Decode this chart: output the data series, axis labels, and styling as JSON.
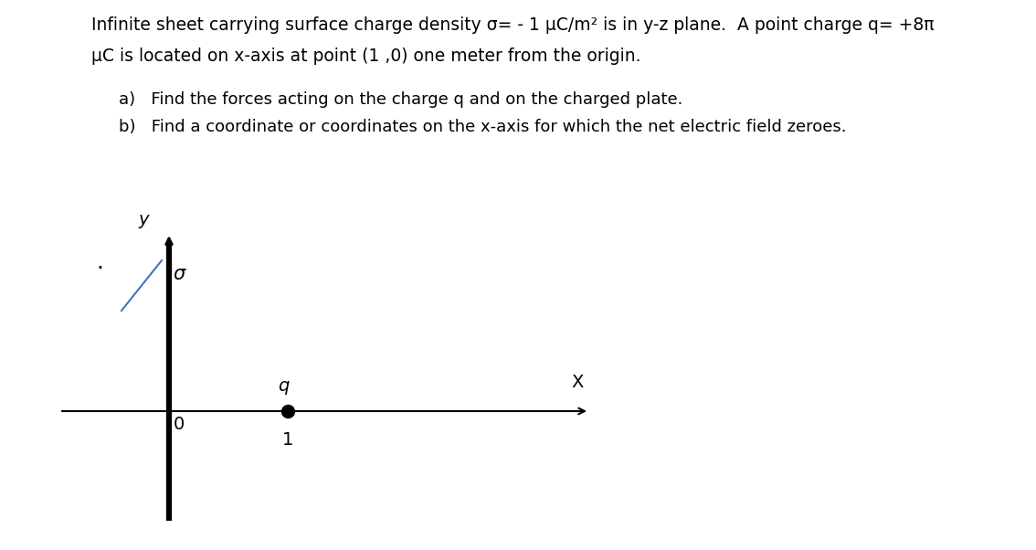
{
  "title_line1": "Infinite sheet carrying surface charge density σ= - 1 μC/m² is in y-z plane.  A point charge q= +8π",
  "title_line2": "μC is located on x-axis at point (1 ,0) one meter from the origin.",
  "part_a": "a)   Find the forces acting on the charge q and on the charged plate.",
  "part_b": "b)   Find a coordinate or coordinates on the x-axis for which the net electric field zeroes.",
  "background_color": "#ffffff",
  "text_color": "#000000",
  "axis_color": "#000000",
  "sigma_line_color": "#4472C4",
  "origin_label": "0",
  "x_label": "X",
  "y_label": "y",
  "sigma_label": "σ",
  "q_label": "q",
  "one_label": "1",
  "dot_color": "#000000",
  "font_size_title": 13.5,
  "font_size_parts": 13,
  "font_size_diagram": 14
}
